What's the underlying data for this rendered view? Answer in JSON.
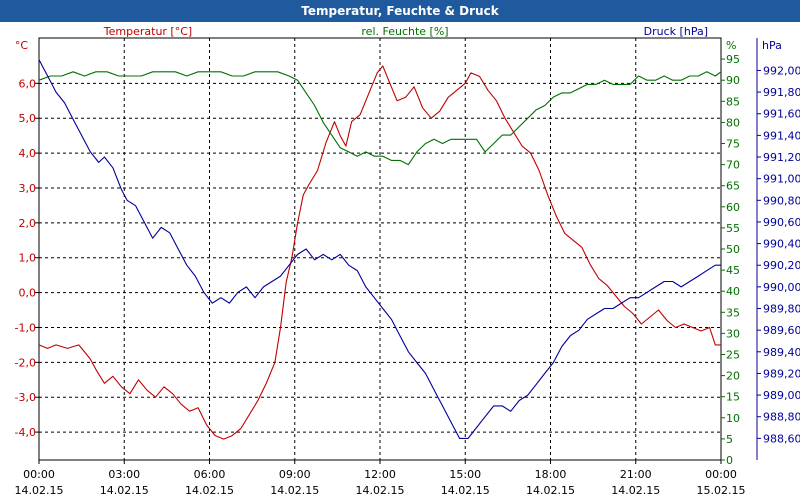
{
  "window": {
    "title": "Temperatur, Feuchte & Druck"
  },
  "colors": {
    "temperature": "#c00000",
    "humidity": "#007000",
    "pressure": "#00009a",
    "grid": "#000000",
    "axis_pressure_box": "#0000aa"
  },
  "chart_data": {
    "type": "line",
    "title": "Temperatur, Feuchte & Druck",
    "grid": true,
    "x_axis": {
      "range": [
        "14.02.15 00:00",
        "15.02.15 00:00"
      ],
      "tick_labels": [
        {
          "time": "00:00",
          "date": "14.02.15"
        },
        {
          "time": "03:00",
          "date": "14.02.15"
        },
        {
          "time": "06:00",
          "date": "14.02.15"
        },
        {
          "time": "09:00",
          "date": "14.02.15"
        },
        {
          "time": "12:00",
          "date": "14.02.15"
        },
        {
          "time": "15:00",
          "date": "14.02.15"
        },
        {
          "time": "18:00",
          "date": "14.02.15"
        },
        {
          "time": "21:00",
          "date": "14.02.15"
        },
        {
          "time": "00:00",
          "date": "15.02.15"
        }
      ]
    },
    "temperature_axis": {
      "unit": "°C",
      "label": "Temperatur [°C]",
      "range": [
        -4.8,
        7.3
      ],
      "ticks": [
        "6,0",
        "5,0",
        "4,0",
        "3,0",
        "2,0",
        "1,0",
        "0,0",
        "-1,0",
        "-2,0",
        "-3,0",
        "-4,0"
      ]
    },
    "humidity_axis": {
      "unit": "%",
      "label": "rel. Feuchte [%]",
      "range": [
        0,
        100
      ],
      "ticks": [
        "95",
        "90",
        "85",
        "80",
        "75",
        "70",
        "65",
        "60",
        "55",
        "50",
        "45",
        "40",
        "35",
        "30",
        "25",
        "20",
        "15",
        "10",
        "5",
        "0"
      ]
    },
    "pressure_axis": {
      "unit": "hPa",
      "label": "Druck [hPa]",
      "range": [
        988.4,
        992.3
      ],
      "ticks": [
        "992,00",
        "991,80",
        "991,60",
        "991,40",
        "991,20",
        "991,00",
        "990,80",
        "990,60",
        "990,40",
        "990,20",
        "990,00",
        "989,80",
        "989,60",
        "989,40",
        "989,20",
        "989,00",
        "988,80",
        "988,60"
      ]
    },
    "series": [
      {
        "name": "Temperatur [°C]",
        "axis": "temperature",
        "color": "#c00000",
        "x_hours": [
          0,
          0.3,
          0.6,
          1.0,
          1.4,
          1.8,
          2.0,
          2.3,
          2.6,
          2.9,
          3.2,
          3.5,
          3.8,
          4.1,
          4.4,
          4.7,
          5.0,
          5.3,
          5.6,
          5.9,
          6.2,
          6.5,
          6.8,
          7.1,
          7.4,
          7.7,
          8.0,
          8.3,
          8.5,
          8.7,
          8.9,
          9.1,
          9.3,
          9.5,
          9.8,
          10.1,
          10.4,
          10.6,
          10.8,
          11.0,
          11.3,
          11.5,
          11.7,
          11.9,
          12.1,
          12.3,
          12.6,
          12.9,
          13.2,
          13.5,
          13.8,
          14.1,
          14.4,
          14.7,
          15.0,
          15.2,
          15.5,
          15.8,
          16.1,
          16.4,
          16.7,
          17.0,
          17.3,
          17.6,
          17.9,
          18.2,
          18.5,
          18.8,
          19.1,
          19.4,
          19.7,
          20.0,
          20.3,
          20.6,
          20.9,
          21.2,
          21.5,
          21.8,
          22.1,
          22.4,
          22.7,
          23.0,
          23.3,
          23.6,
          23.8,
          24.0
        ],
        "values": [
          -1.5,
          -1.6,
          -1.5,
          -1.6,
          -1.5,
          -1.9,
          -2.2,
          -2.6,
          -2.4,
          -2.7,
          -2.9,
          -2.5,
          -2.8,
          -3.0,
          -2.7,
          -2.9,
          -3.2,
          -3.4,
          -3.3,
          -3.8,
          -4.1,
          -4.2,
          -4.1,
          -3.9,
          -3.5,
          -3.1,
          -2.6,
          -2.0,
          -1.0,
          0.3,
          1.0,
          2.0,
          2.8,
          3.1,
          3.5,
          4.3,
          4.9,
          4.5,
          4.2,
          4.9,
          5.1,
          5.5,
          5.9,
          6.3,
          6.5,
          6.1,
          5.5,
          5.6,
          5.9,
          5.3,
          5.0,
          5.2,
          5.6,
          5.8,
          6.0,
          6.3,
          6.2,
          5.8,
          5.5,
          5.0,
          4.6,
          4.2,
          4.0,
          3.5,
          2.8,
          2.2,
          1.7,
          1.5,
          1.3,
          0.8,
          0.4,
          0.2,
          -0.1,
          -0.4,
          -0.6,
          -0.9,
          -0.7,
          -0.5,
          -0.8,
          -1.0,
          -0.9,
          -1.0,
          -1.1,
          -1.0,
          -1.5,
          -1.5
        ]
      },
      {
        "name": "rel. Feuchte [%]",
        "axis": "humidity",
        "color": "#007000",
        "x_hours": [
          0,
          0.4,
          0.8,
          1.2,
          1.6,
          2.0,
          2.4,
          2.8,
          3.2,
          3.6,
          4.0,
          4.4,
          4.8,
          5.2,
          5.6,
          6.0,
          6.4,
          6.8,
          7.2,
          7.6,
          8.0,
          8.4,
          8.8,
          9.1,
          9.4,
          9.7,
          10.0,
          10.3,
          10.6,
          10.9,
          11.2,
          11.5,
          11.8,
          12.1,
          12.4,
          12.7,
          13.0,
          13.3,
          13.6,
          13.9,
          14.2,
          14.5,
          14.8,
          15.1,
          15.4,
          15.7,
          16.0,
          16.3,
          16.6,
          16.9,
          17.2,
          17.5,
          17.8,
          18.1,
          18.4,
          18.7,
          19.0,
          19.3,
          19.6,
          19.9,
          20.2,
          20.5,
          20.8,
          21.1,
          21.4,
          21.7,
          22.0,
          22.3,
          22.6,
          22.9,
          23.2,
          23.5,
          23.8,
          24.0
        ],
        "values": [
          90,
          91,
          91,
          92,
          91,
          92,
          92,
          91,
          91,
          91,
          92,
          92,
          92,
          91,
          92,
          92,
          92,
          91,
          91,
          92,
          92,
          92,
          91,
          90,
          87,
          84,
          80,
          77,
          74,
          73,
          72,
          73,
          72,
          72,
          71,
          71,
          70,
          73,
          75,
          76,
          75,
          76,
          76,
          76,
          76,
          73,
          75,
          77,
          77,
          79,
          81,
          83,
          84,
          86,
          87,
          87,
          88,
          89,
          89,
          90,
          89,
          89,
          89,
          91,
          90,
          90,
          91,
          90,
          90,
          91,
          91,
          92,
          91,
          92
        ]
      },
      {
        "name": "Druck [hPa]",
        "axis": "pressure",
        "color": "#00009a",
        "x_hours": [
          0,
          0.2,
          0.4,
          0.6,
          0.9,
          1.2,
          1.5,
          1.8,
          2.1,
          2.3,
          2.6,
          2.9,
          3.1,
          3.4,
          3.7,
          4.0,
          4.3,
          4.6,
          4.9,
          5.2,
          5.5,
          5.8,
          6.1,
          6.4,
          6.7,
          7.0,
          7.3,
          7.6,
          7.9,
          8.2,
          8.5,
          8.8,
          9.1,
          9.4,
          9.7,
          10.0,
          10.3,
          10.6,
          10.9,
          11.2,
          11.5,
          11.8,
          12.1,
          12.4,
          12.7,
          13.0,
          13.3,
          13.6,
          13.9,
          14.2,
          14.5,
          14.8,
          15.1,
          15.4,
          15.7,
          16.0,
          16.3,
          16.6,
          16.9,
          17.2,
          17.5,
          17.8,
          18.1,
          18.4,
          18.7,
          19.0,
          19.3,
          19.6,
          19.9,
          20.2,
          20.5,
          20.8,
          21.1,
          21.4,
          21.7,
          22.0,
          22.3,
          22.6,
          22.9,
          23.2,
          23.5,
          23.8,
          24.0
        ],
        "values": [
          992.1,
          992.0,
          991.9,
          991.8,
          991.7,
          991.55,
          991.4,
          991.25,
          991.15,
          991.2,
          991.1,
          990.9,
          990.8,
          990.75,
          990.6,
          990.45,
          990.55,
          990.5,
          990.35,
          990.2,
          990.1,
          989.95,
          989.85,
          989.9,
          989.85,
          989.95,
          990.0,
          989.9,
          990.0,
          990.05,
          990.1,
          990.2,
          990.3,
          990.35,
          990.25,
          990.3,
          990.25,
          990.3,
          990.2,
          990.15,
          990.0,
          989.9,
          989.8,
          989.7,
          989.55,
          989.4,
          989.3,
          989.2,
          989.05,
          988.9,
          988.75,
          988.6,
          988.6,
          988.7,
          988.8,
          988.9,
          988.9,
          988.85,
          988.95,
          989.0,
          989.1,
          989.2,
          989.3,
          989.45,
          989.55,
          989.6,
          989.7,
          989.75,
          989.8,
          989.8,
          989.85,
          989.9,
          989.9,
          989.95,
          990.0,
          990.05,
          990.05,
          990.0,
          990.05,
          990.1,
          990.15,
          990.2,
          990.2
        ]
      }
    ]
  }
}
